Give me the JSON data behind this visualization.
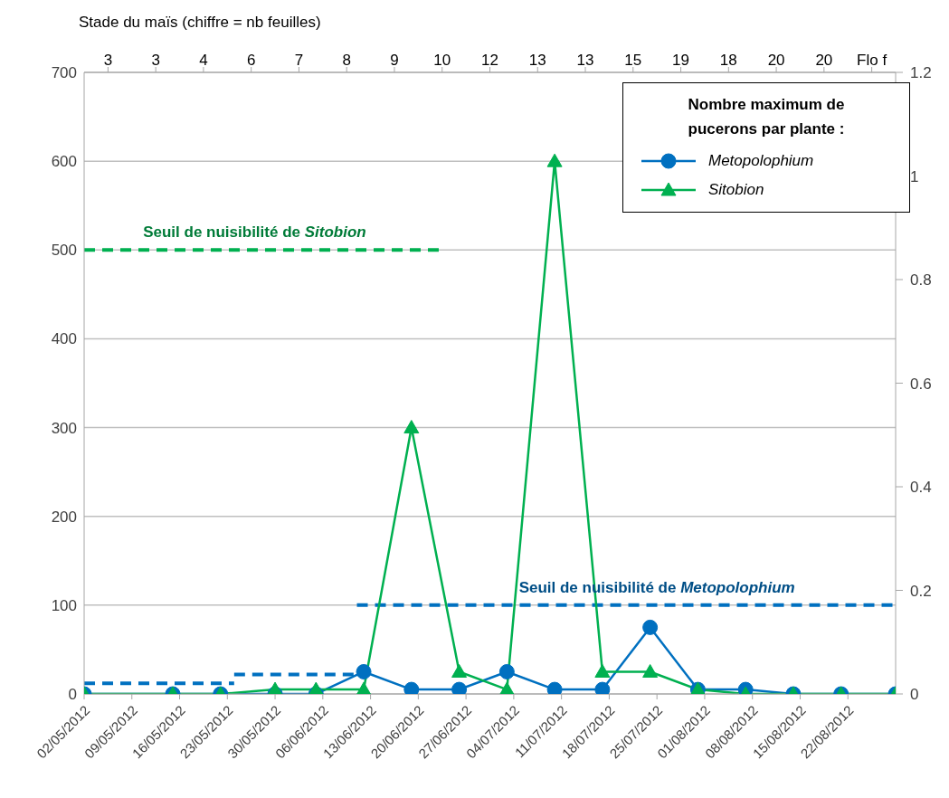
{
  "chart_data": {
    "type": "line",
    "x2label": "Stade du maïs (chiffre = nb feuilles)",
    "xlim": [
      "2012-05-02",
      "2012-08-29"
    ],
    "xticks": [
      {
        "value": "2012-05-02",
        "label": "02/05/2012"
      },
      {
        "value": "2012-05-09",
        "label": "09/05/2012"
      },
      {
        "value": "2012-05-16",
        "label": "16/05/2012"
      },
      {
        "value": "2012-05-23",
        "label": "23/05/2012"
      },
      {
        "value": "2012-05-30",
        "label": "30/05/2012"
      },
      {
        "value": "2012-06-06",
        "label": "06/06/2012"
      },
      {
        "value": "2012-06-13",
        "label": "13/06/2012"
      },
      {
        "value": "2012-06-20",
        "label": "20/06/2012"
      },
      {
        "value": "2012-06-27",
        "label": "27/06/2012"
      },
      {
        "value": "2012-07-04",
        "label": "04/07/2012"
      },
      {
        "value": "2012-07-11",
        "label": "11/07/2012"
      },
      {
        "value": "2012-07-18",
        "label": "18/07/2012"
      },
      {
        "value": "2012-07-25",
        "label": "25/07/2012"
      },
      {
        "value": "2012-08-01",
        "label": "01/08/2012"
      },
      {
        "value": "2012-08-08",
        "label": "08/08/2012"
      },
      {
        "value": "2012-08-15",
        "label": "15/08/2012"
      },
      {
        "value": "2012-08-22",
        "label": "22/08/2012"
      }
    ],
    "x2lim": [
      "2012-05-02",
      "2012-08-29"
    ],
    "x2ticks": [
      {
        "value": "2012-05-05T12:00",
        "label": "3"
      },
      {
        "value": "2012-05-12T12:00",
        "label": "3"
      },
      {
        "value": "2012-05-19T12:00",
        "label": "4"
      },
      {
        "value": "2012-05-26T12:00",
        "label": "6"
      },
      {
        "value": "2012-06-02T12:00",
        "label": "7"
      },
      {
        "value": "2012-06-09T12:00",
        "label": "8"
      },
      {
        "value": "2012-06-16T12:00",
        "label": "9"
      },
      {
        "value": "2012-06-23T12:00",
        "label": "10"
      },
      {
        "value": "2012-06-30T12:00",
        "label": "12"
      },
      {
        "value": "2012-07-07T12:00",
        "label": "13"
      },
      {
        "value": "2012-07-14T12:00",
        "label": "13"
      },
      {
        "value": "2012-07-21T12:00",
        "label": "15"
      },
      {
        "value": "2012-07-28T12:00",
        "label": "19"
      },
      {
        "value": "2012-08-04T12:00",
        "label": "18"
      },
      {
        "value": "2012-08-11T12:00",
        "label": "20"
      },
      {
        "value": "2012-08-18T12:00",
        "label": "20"
      },
      {
        "value": "2012-08-25T12:00",
        "label": "Flo f"
      }
    ],
    "ylim": [
      0,
      700
    ],
    "yticks": [
      0,
      100,
      200,
      300,
      400,
      500,
      600,
      700
    ],
    "y2lim": [
      0,
      1.2
    ],
    "y2ticks": [
      0,
      0.2,
      0.4,
      0.6,
      0.8,
      1,
      1.2
    ],
    "grid": "y",
    "legend": "top right",
    "legend_title": "Nombre maximum de pucerons par plante :",
    "series": [
      {
        "color": "#00b050",
        "line_style": "dashed",
        "marker": "none",
        "x": [
          "2012-05-02",
          "2012-06-23"
        ],
        "values": [
          500,
          500
        ]
      },
      {
        "color": "#0070c0",
        "line_style": "dashed",
        "marker": "none",
        "x": [
          "2012-05-02",
          "2012-05-24"
        ],
        "values": [
          12,
          12
        ]
      },
      {
        "color": "#0070c0",
        "line_style": "dashed",
        "marker": "none",
        "x": [
          "2012-05-24",
          "2012-06-11"
        ],
        "values": [
          22,
          22
        ]
      },
      {
        "color": "#0070c0",
        "line_style": "dashed",
        "marker": "none",
        "x": [
          "2012-06-11",
          "2012-08-29"
        ],
        "values": [
          100,
          100
        ]
      },
      {
        "name": "Metopolophium",
        "color": "#0070c0",
        "line_style": "solid",
        "marker": "circle",
        "x": [
          "2012-05-02",
          "2012-05-15",
          "2012-05-22",
          "2012-05-30",
          "2012-06-05",
          "2012-06-12",
          "2012-06-19",
          "2012-06-26",
          "2012-07-03",
          "2012-07-10",
          "2012-07-17",
          "2012-07-24",
          "2012-07-31",
          "2012-08-07",
          "2012-08-14",
          "2012-08-21",
          "2012-08-29"
        ],
        "values": [
          0,
          0,
          0,
          0,
          0,
          25,
          5,
          5,
          25,
          5,
          5,
          75,
          5,
          5,
          0,
          0,
          0
        ]
      },
      {
        "name": "Sitobion",
        "color": "#00b050",
        "line_style": "solid",
        "marker": "triangle",
        "x": [
          "2012-05-02",
          "2012-05-15",
          "2012-05-22",
          "2012-05-30",
          "2012-06-05",
          "2012-06-12",
          "2012-06-19",
          "2012-06-26",
          "2012-07-03",
          "2012-07-10",
          "2012-07-17",
          "2012-07-24",
          "2012-07-31",
          "2012-08-07",
          "2012-08-14",
          "2012-08-21",
          "2012-08-29"
        ],
        "values": [
          0,
          0,
          0,
          5,
          5,
          5,
          300,
          25,
          5,
          600,
          25,
          25,
          5,
          0,
          0,
          0,
          0
        ]
      }
    ],
    "annotations": [
      {
        "text": "Seuil de nuisibilité de Sitobion",
        "x": "2012-05-27",
        "y": 500
      },
      {
        "text": "Seuil de nuisibilité de Metopolophium",
        "x": "2012-07-25",
        "y": 100
      }
    ]
  }
}
